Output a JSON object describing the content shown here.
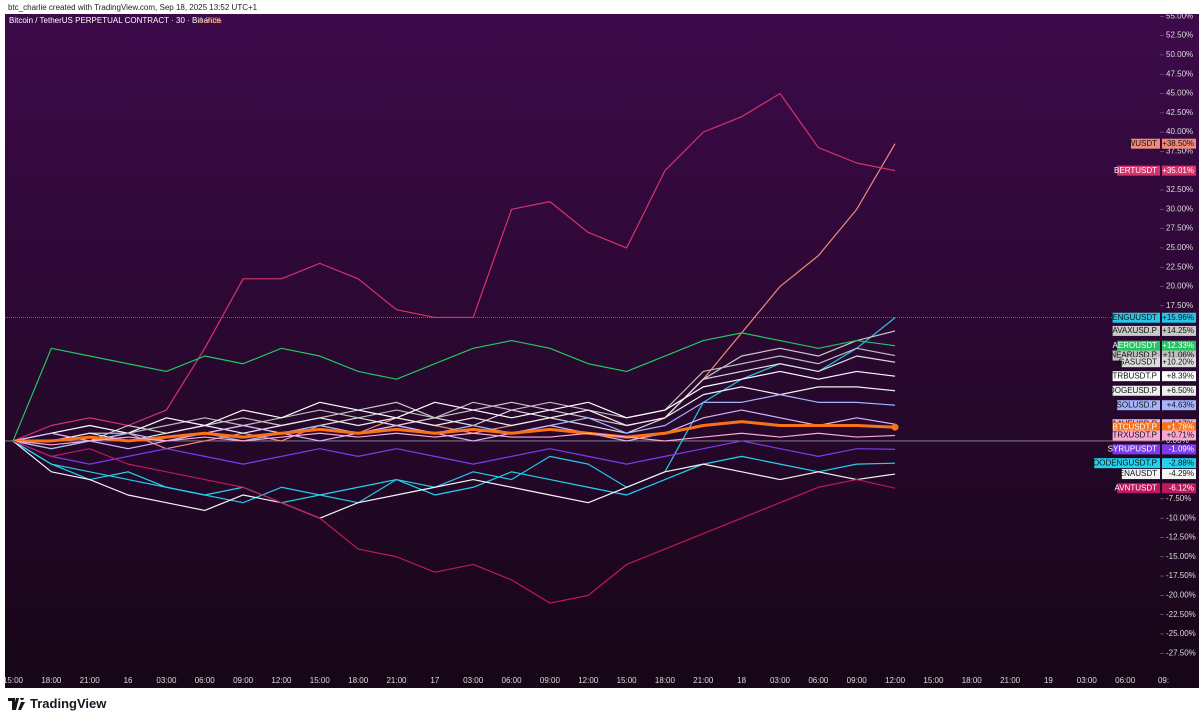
{
  "header": {
    "credit": "btc_charlie created with TradingView.com, Sep 18, 2025 13:52 UTC+1",
    "brand": "TradingView"
  },
  "chart_data": {
    "type": "line",
    "title": "Bitcoin / TetherUS PERPETUAL CONTRACT · 30 · Binance",
    "title_change": "1.78%",
    "categories": [
      "15:00",
      "18:00",
      "21:00",
      "16",
      "03:00",
      "06:00",
      "09:00",
      "12:00",
      "15:00",
      "18:00",
      "21:00",
      "17",
      "03:00",
      "06:00",
      "09:00",
      "12:00",
      "15:00",
      "18:00",
      "21:00",
      "18",
      "03:00",
      "06:00",
      "09:00",
      "12:00",
      "15:00",
      "18:00",
      "21:00",
      "19",
      "03:00",
      "06:00",
      "09:"
    ],
    "ylim": [
      -32,
      55.3
    ],
    "yticks": [
      {
        "value": -27.5,
        "label": "-27.50%"
      },
      {
        "value": -25,
        "label": "-25.00%"
      },
      {
        "value": -22.5,
        "label": "-22.50%"
      },
      {
        "value": -20,
        "label": "-20.00%"
      },
      {
        "value": -17.5,
        "label": "-17.50%"
      },
      {
        "value": -15,
        "label": "-15.00%"
      },
      {
        "value": -12.5,
        "label": "-12.50%"
      },
      {
        "value": -10,
        "label": "-10.00%"
      },
      {
        "value": -7.5,
        "label": "-7.50%"
      },
      {
        "value": 0,
        "label": "0.00%"
      },
      {
        "value": 17.5,
        "label": "17.50%"
      },
      {
        "value": 20,
        "label": "20.00%"
      },
      {
        "value": 22.5,
        "label": "22.50%"
      },
      {
        "value": 25,
        "label": "25.00%"
      },
      {
        "value": 27.5,
        "label": "27.50%"
      },
      {
        "value": 30,
        "label": "30.00%"
      },
      {
        "value": 32.5,
        "label": "32.50%"
      },
      {
        "value": 37.5,
        "label": "37.50%"
      },
      {
        "value": 40,
        "label": "40.00%"
      },
      {
        "value": 42.5,
        "label": "42.50%"
      },
      {
        "value": 45,
        "label": "45.00%"
      },
      {
        "value": 47.5,
        "label": "47.50%"
      },
      {
        "value": 50,
        "label": "50.00%"
      },
      {
        "value": 52.5,
        "label": "52.50%"
      },
      {
        "value": 55,
        "label": "55.00%"
      }
    ],
    "series": [
      {
        "name": "WUSDT",
        "color": "#f08a7a",
        "value_labels": [
          "+38.50%"
        ],
        "values": [
          0,
          -1,
          0,
          1,
          -1,
          0,
          1,
          0,
          2,
          1,
          3,
          2,
          1,
          2,
          3,
          4,
          2,
          3,
          8,
          14,
          20,
          24,
          30,
          38.5,
          null,
          null,
          null,
          null,
          null,
          null,
          null
        ]
      },
      {
        "name": "BERTUSDT",
        "color": "#d6336c",
        "value_labels": [
          "+35.01%"
        ],
        "values": [
          0,
          2,
          3,
          2,
          4,
          12,
          21,
          21,
          23,
          21,
          17,
          16,
          16,
          30,
          31,
          27,
          25,
          35,
          40,
          42,
          45,
          38,
          36,
          35.01,
          null,
          null,
          null,
          null,
          null,
          null,
          null
        ]
      },
      {
        "name": "PENGUUSDT",
        "color": "#29c5e6",
        "value_labels": [
          "+15.96%"
        ],
        "values": [
          0,
          -3,
          -4,
          -5,
          -6,
          -7,
          -8,
          -6,
          -7,
          -8,
          -5,
          -6,
          -4,
          -5,
          -2,
          -3,
          -6,
          -4,
          5,
          8,
          10,
          9,
          12,
          15.96,
          null,
          null,
          null,
          null,
          null,
          null,
          null
        ]
      },
      {
        "name": "AVAXUSD.P",
        "color": "#c9c9c9",
        "value_labels": [
          "+14.25%"
        ],
        "values": [
          0,
          1,
          0,
          2,
          1,
          2,
          3,
          2,
          3,
          4,
          5,
          3,
          4,
          5,
          4,
          3,
          2,
          3,
          8,
          11,
          12,
          11,
          13,
          14.25,
          null,
          null,
          null,
          null,
          null,
          null,
          null
        ]
      },
      {
        "name": "AEROUSDT",
        "color": "#22c55e",
        "value_labels": [
          "+12.33%"
        ],
        "values": [
          0,
          12,
          11,
          10,
          9,
          11,
          10,
          12,
          11,
          9,
          8,
          10,
          12,
          13,
          12,
          10,
          9,
          11,
          13,
          14,
          13,
          12,
          13,
          12.33,
          null,
          null,
          null,
          null,
          null,
          null,
          null
        ]
      },
      {
        "name": "NEARUSD.P",
        "color": "#bdbdbd",
        "value_labels": [
          "+11.06%"
        ],
        "values": [
          0,
          0,
          1,
          1,
          2,
          3,
          2,
          3,
          4,
          3,
          4,
          3,
          5,
          4,
          5,
          4,
          3,
          4,
          9,
          10,
          11,
          10,
          12,
          11.06,
          null,
          null,
          null,
          null,
          null,
          null,
          null
        ]
      },
      {
        "name": "GASUSDT",
        "color": "#dcdcdc",
        "value_labels": [
          "+10.20%"
        ],
        "values": [
          0,
          -1,
          0,
          1,
          0,
          1,
          2,
          1,
          2,
          3,
          2,
          3,
          2,
          4,
          3,
          2,
          1,
          3,
          8,
          9,
          10,
          9,
          11,
          10.2,
          null,
          null,
          null,
          null,
          null,
          null,
          null
        ]
      },
      {
        "name": "TRBUSDT.P",
        "color": "#ffffff",
        "value_labels": [
          "+8.39%"
        ],
        "values": [
          0,
          1,
          2,
          1,
          3,
          2,
          4,
          3,
          5,
          4,
          3,
          5,
          4,
          3,
          4,
          5,
          3,
          4,
          7,
          8,
          9,
          8,
          9,
          8.39,
          null,
          null,
          null,
          null,
          null,
          null,
          null
        ]
      },
      {
        "name": "DOGEUSD.P",
        "color": "#eeeeee",
        "value_labels": [
          "+6.50%"
        ],
        "values": [
          0,
          0,
          1,
          0,
          1,
          2,
          1,
          2,
          3,
          2,
          3,
          2,
          3,
          2,
          3,
          4,
          2,
          3,
          6,
          7,
          6,
          7,
          7,
          6.5,
          null,
          null,
          null,
          null,
          null,
          null,
          null
        ]
      },
      {
        "name": "SOLUSD.P",
        "color": "#a5b4fc",
        "value_labels": [
          "+4.63%"
        ],
        "values": [
          0,
          -1,
          0,
          1,
          0,
          1,
          0,
          1,
          2,
          1,
          2,
          1,
          2,
          1,
          2,
          3,
          1,
          2,
          5,
          5,
          6,
          5,
          5,
          4.63,
          null,
          null,
          null,
          null,
          null,
          null,
          null
        ]
      },
      {
        "name": "AAVEUSD.P",
        "color": "#d8b4fe",
        "value_labels": [
          "+2.17%"
        ],
        "values": [
          0,
          1,
          0,
          -1,
          0,
          1,
          2,
          1,
          0,
          1,
          2,
          1,
          0,
          1,
          2,
          1,
          0,
          1,
          3,
          4,
          3,
          2,
          3,
          2.17,
          null,
          null,
          null,
          null,
          null,
          null,
          null
        ]
      },
      {
        "name": "BTCUSDT.P",
        "color": "#f97316",
        "value_labels": [
          "+1.78%"
        ],
        "values": [
          0,
          0,
          0.5,
          0,
          0.5,
          1,
          0.5,
          1,
          1.5,
          1,
          1.5,
          1,
          1.5,
          1,
          1.5,
          1,
          0.5,
          1,
          2,
          2.5,
          2,
          2,
          2,
          1.78,
          null,
          null,
          null,
          null,
          null,
          null,
          null
        ]
      },
      {
        "name": "TRXUSDT.P",
        "color": "#f9a8d4",
        "value_labels": [
          "+0.71%"
        ],
        "values": [
          0,
          -0.5,
          0,
          0.5,
          0,
          0.5,
          0,
          0.5,
          1,
          0.5,
          1,
          0.5,
          1,
          0.5,
          0.5,
          1,
          0.5,
          0,
          0.5,
          1,
          0.5,
          1,
          0.5,
          0.71,
          null,
          null,
          null,
          null,
          null,
          null,
          null
        ]
      },
      {
        "name": "SYRUPUSDT",
        "color": "#7c3aed",
        "value_labels": [
          "-1.09%"
        ],
        "values": [
          0,
          -2,
          -3,
          -2,
          -1,
          -2,
          -3,
          -2,
          -1,
          -2,
          -1,
          -2,
          -3,
          -2,
          -1,
          -2,
          -3,
          -2,
          -1,
          0,
          -1,
          -2,
          -1,
          -1.09,
          null,
          null,
          null,
          null,
          null,
          null,
          null
        ]
      },
      {
        "name": "MOODENGUSDT.P",
        "color": "#22d3ee",
        "value_labels": [
          "-2.88%"
        ],
        "values": [
          0,
          -3,
          -5,
          -4,
          -6,
          -7,
          -6,
          -8,
          -7,
          -6,
          -5,
          -7,
          -6,
          -4,
          -5,
          -6,
          -7,
          -5,
          -3,
          -2,
          -3,
          -4,
          -3,
          -2.88,
          null,
          null,
          null,
          null,
          null,
          null,
          null
        ]
      },
      {
        "name": "ENAUSDT",
        "color": "#f5f5f5",
        "value_labels": [
          "-4.29%"
        ],
        "values": [
          0,
          -4,
          -5,
          -7,
          -8,
          -9,
          -7,
          -8,
          -10,
          -8,
          -7,
          -6,
          -5,
          -6,
          -7,
          -8,
          -6,
          -4,
          -3,
          -4,
          -5,
          -4,
          -5,
          -4.29,
          null,
          null,
          null,
          null,
          null,
          null,
          null
        ]
      },
      {
        "name": "AVNTUSDT",
        "color": "#be185d",
        "value_labels": [
          "-6.12%"
        ],
        "values": [
          0,
          -2,
          -1,
          -3,
          -4,
          -5,
          -6,
          -8,
          -10,
          -14,
          -15,
          -17,
          -16,
          -18,
          -21,
          -20,
          -16,
          -14,
          -12,
          -10,
          -8,
          -6,
          -5,
          -6.12,
          null,
          null,
          null,
          null,
          null,
          null,
          null
        ]
      }
    ],
    "thick_series": "BTCUSDT.P",
    "price_line_series": "PENGUUSDT"
  }
}
